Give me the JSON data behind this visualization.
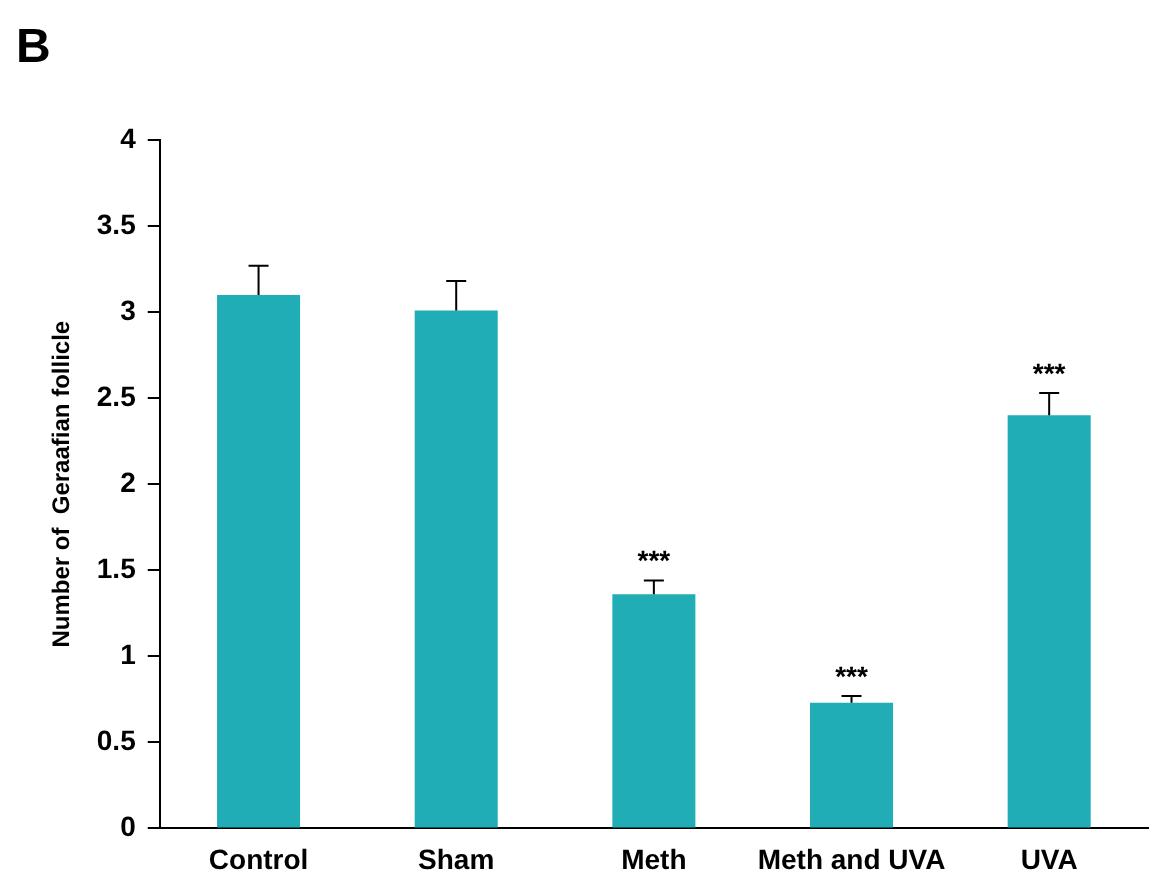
{
  "chart_data": {
    "type": "bar",
    "ylabel": "Number of  Geraafian follicle",
    "categories": [
      "Control",
      "Sham",
      "Meth",
      "Meth and UVA",
      "UVA"
    ],
    "values": [
      3.1,
      3.01,
      1.36,
      0.73,
      2.4
    ],
    "errors": [
      [
        3.1,
        3.27
      ],
      [
        3.01,
        3.18
      ],
      [
        1.36,
        1.44
      ],
      [
        0.73,
        0.77
      ],
      [
        2.4,
        2.53
      ]
    ],
    "color": "#20adb5",
    "ylim": [
      0,
      4
    ],
    "yticks": [
      0,
      0.5,
      1,
      1.5,
      2,
      2.5,
      3,
      3.5,
      4
    ],
    "grid": false,
    "legend": false,
    "annotations": [
      "B",
      {
        "text": "***",
        "x": "Meth",
        "y": 1.44
      },
      {
        "text": "***",
        "x": "Meth and UVA",
        "y": 0.77
      },
      {
        "text": "***",
        "x": "UVA",
        "y": 2.53
      }
    ]
  }
}
